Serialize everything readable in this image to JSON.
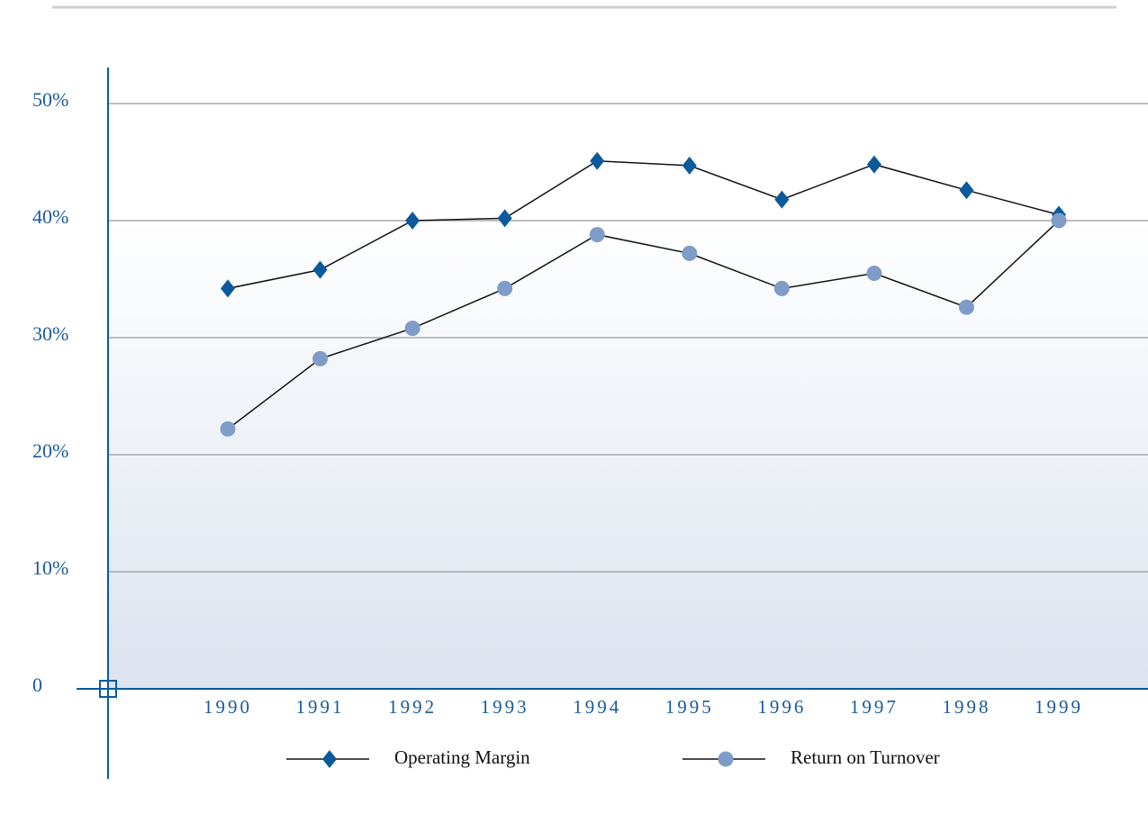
{
  "chart_data": {
    "type": "line",
    "categories": [
      "1990",
      "1991",
      "1992",
      "1993",
      "1994",
      "1995",
      "1996",
      "1997",
      "1998",
      "1999"
    ],
    "series": [
      {
        "name": "Operating Margin",
        "color": "#0a5a9c",
        "marker": "diamond",
        "values": [
          34.2,
          35.8,
          40.0,
          40.2,
          45.1,
          44.7,
          41.8,
          44.8,
          42.6,
          40.5
        ]
      },
      {
        "name": "Return on Turnover",
        "color": "#7f9cc8",
        "marker": "circle",
        "values": [
          22.2,
          28.2,
          30.8,
          34.2,
          38.8,
          37.2,
          34.2,
          35.5,
          32.6,
          40.0
        ]
      }
    ],
    "ylim": [
      0,
      50
    ],
    "yticks": [
      0,
      {
        "value": 10,
        "label": "10%"
      },
      {
        "value": 20,
        "label": "20%"
      },
      {
        "value": 30,
        "label": "30%"
      },
      {
        "value": 40,
        "label": "40%"
      },
      {
        "value": 50,
        "label": "50%"
      }
    ],
    "grid": true
  }
}
